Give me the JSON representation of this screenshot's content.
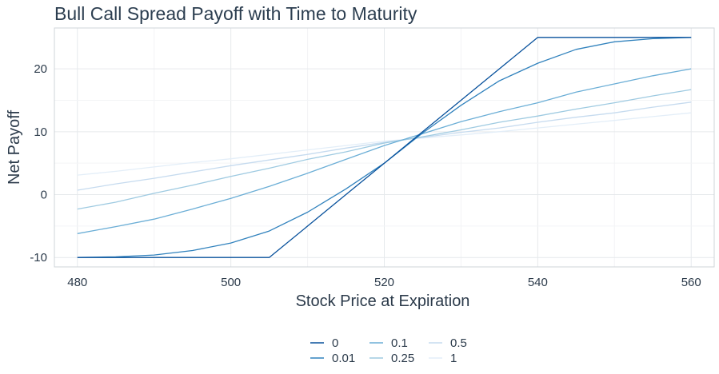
{
  "chart_data": {
    "type": "line",
    "title": "Bull Call Spread Payoff with Time to Maturity",
    "xlabel": "Stock Price at Expiration",
    "ylabel": "Net Payoff",
    "xlim": [
      477,
      563
    ],
    "ylim": [
      -11.5,
      26.5
    ],
    "x_ticks": [
      480,
      500,
      520,
      540,
      560
    ],
    "y_ticks": [
      -10,
      0,
      10,
      20
    ],
    "x_tick_labels": [
      "480",
      "500",
      "520",
      "540",
      "560"
    ],
    "y_tick_labels": [
      "-10",
      "0",
      "10",
      "20"
    ],
    "grid": true,
    "legend_position": "bottom",
    "x": [
      480,
      485,
      490,
      495,
      500,
      505,
      510,
      515,
      520,
      525,
      530,
      535,
      540,
      545,
      550,
      555,
      560
    ],
    "series": [
      {
        "name": "0",
        "color": "#08519c",
        "values": [
          -10,
          -10,
          -10,
          -10,
          -10,
          -10,
          -5,
          0,
          5,
          10,
          15,
          20,
          25,
          25,
          25,
          25,
          25
        ]
      },
      {
        "name": "0.01",
        "color": "#3182bd",
        "values": [
          -10,
          -9.9,
          -9.6,
          -8.9,
          -7.7,
          -5.8,
          -2.8,
          0.9,
          5.0,
          9.8,
          14.2,
          18.1,
          20.9,
          23.1,
          24.3,
          24.8,
          25.0
        ]
      },
      {
        "name": "0.1",
        "color": "#6baed6",
        "values": [
          -6.2,
          -5.1,
          -3.9,
          -2.3,
          -0.6,
          1.3,
          3.4,
          5.6,
          7.8,
          9.7,
          11.6,
          13.2,
          14.6,
          16.3,
          17.6,
          18.9,
          20.0
        ]
      },
      {
        "name": "0.25",
        "color": "#9ecae1",
        "values": [
          -2.3,
          -1.2,
          0.2,
          1.5,
          2.9,
          4.2,
          5.6,
          6.8,
          8.2,
          9.2,
          10.3,
          11.5,
          12.5,
          13.6,
          14.6,
          15.7,
          16.7
        ]
      },
      {
        "name": "0.5",
        "color": "#c6dbef",
        "values": [
          0.7,
          1.7,
          2.6,
          3.6,
          4.6,
          5.5,
          6.4,
          7.4,
          8.3,
          9.1,
          9.9,
          10.6,
          11.5,
          12.3,
          13.0,
          13.9,
          14.7
        ]
      },
      {
        "name": "1",
        "color": "#e3eef8",
        "values": [
          3.1,
          3.7,
          4.4,
          5.1,
          5.7,
          6.4,
          7.1,
          7.8,
          8.5,
          9.0,
          9.5,
          10.0,
          10.6,
          11.2,
          11.8,
          12.4,
          13.0
        ]
      }
    ]
  }
}
